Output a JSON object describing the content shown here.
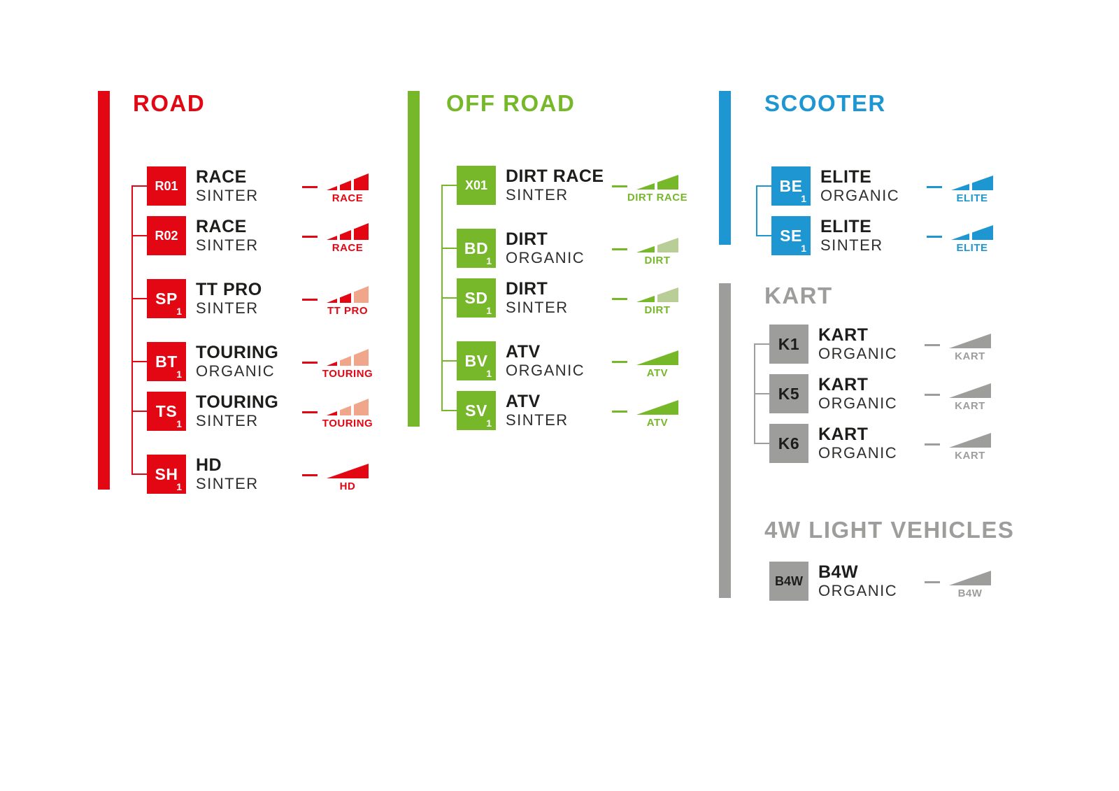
{
  "palette": {
    "red": "#e30613",
    "red_light": "#efa68a",
    "green": "#76b82a",
    "green_light": "#b9cd96",
    "blue": "#1e96d2",
    "gray": "#9d9d9c",
    "white": "#ffffff",
    "dark": "#1d1d1b"
  },
  "sections": [
    {
      "id": "road",
      "title": "ROAD",
      "color_key": "red",
      "badge_text_key": "white",
      "connector": true,
      "groups": [
        {
          "items": [
            {
              "code": "R01",
              "sub": "",
              "name": "RACE",
              "compound": "SINTER",
              "icon": {
                "type": "ramp3",
                "segments": [
                  "red",
                  "red",
                  "red"
                ],
                "label": "RACE"
              }
            },
            {
              "code": "R02",
              "sub": "",
              "name": "RACE",
              "compound": "SINTER",
              "icon": {
                "type": "ramp3",
                "segments": [
                  "red",
                  "red",
                  "red"
                ],
                "label": "RACE"
              }
            }
          ]
        },
        {
          "items": [
            {
              "code": "SP",
              "sub": "1",
              "name": "TT PRO",
              "compound": "SINTER",
              "icon": {
                "type": "ramp3",
                "segments": [
                  "red",
                  "red",
                  "red_light"
                ],
                "label": "TT PRO"
              }
            }
          ]
        },
        {
          "items": [
            {
              "code": "BT",
              "sub": "1",
              "name": "TOURING",
              "compound": "ORGANIC",
              "icon": {
                "type": "ramp3",
                "segments": [
                  "red",
                  "red_light",
                  "red_light"
                ],
                "label": "TOURING"
              }
            },
            {
              "code": "TS",
              "sub": "1",
              "name": "TOURING",
              "compound": "SINTER",
              "icon": {
                "type": "ramp3",
                "segments": [
                  "red",
                  "red_light",
                  "red_light"
                ],
                "label": "TOURING"
              }
            }
          ]
        },
        {
          "items": [
            {
              "code": "SH",
              "sub": "1",
              "name": "HD",
              "compound": "SINTER",
              "icon": {
                "type": "ramp1",
                "segments": [
                  "red"
                ],
                "label": "HD"
              }
            }
          ]
        }
      ]
    },
    {
      "id": "offroad",
      "title": "OFF ROAD",
      "color_key": "green",
      "badge_text_key": "white",
      "connector": true,
      "groups": [
        {
          "items": [
            {
              "code": "X01",
              "sub": "",
              "name": "DIRT RACE",
              "compound": "SINTER",
              "icon": {
                "type": "ramp2",
                "segments": [
                  "green",
                  "green"
                ],
                "label": "DIRT RACE"
              }
            }
          ]
        },
        {
          "items": [
            {
              "code": "BD",
              "sub": "1",
              "name": "DIRT",
              "compound": "ORGANIC",
              "icon": {
                "type": "ramp2",
                "segments": [
                  "green",
                  "green_light"
                ],
                "label": "DIRT"
              }
            },
            {
              "code": "SD",
              "sub": "1",
              "name": "DIRT",
              "compound": "SINTER",
              "icon": {
                "type": "ramp2",
                "segments": [
                  "green",
                  "green_light"
                ],
                "label": "DIRT"
              }
            }
          ]
        },
        {
          "items": [
            {
              "code": "BV",
              "sub": "1",
              "name": "ATV",
              "compound": "ORGANIC",
              "icon": {
                "type": "ramp1",
                "segments": [
                  "green"
                ],
                "label": "ATV"
              }
            },
            {
              "code": "SV",
              "sub": "1",
              "name": "ATV",
              "compound": "SINTER",
              "icon": {
                "type": "ramp1",
                "segments": [
                  "green"
                ],
                "label": "ATV"
              }
            }
          ]
        }
      ]
    },
    {
      "id": "scooter",
      "title": "SCOOTER",
      "color_key": "blue",
      "badge_text_key": "white",
      "connector": true,
      "groups": [
        {
          "items": [
            {
              "code": "BE",
              "sub": "1",
              "name": "ELITE",
              "compound": "ORGANIC",
              "icon": {
                "type": "ramp2",
                "segments": [
                  "blue",
                  "blue"
                ],
                "label": "ELITE"
              }
            },
            {
              "code": "SE",
              "sub": "1",
              "name": "ELITE",
              "compound": "SINTER",
              "icon": {
                "type": "ramp2",
                "segments": [
                  "blue",
                  "blue"
                ],
                "label": "ELITE"
              }
            }
          ]
        }
      ]
    },
    {
      "id": "kart",
      "title": "KART",
      "color_key": "gray",
      "badge_text_key": "dark",
      "connector": true,
      "groups": [
        {
          "items": [
            {
              "code": "K1",
              "sub": "",
              "name": "KART",
              "compound": "ORGANIC",
              "icon": {
                "type": "ramp1",
                "segments": [
                  "gray"
                ],
                "label": "KART"
              }
            },
            {
              "code": "K5",
              "sub": "",
              "name": "KART",
              "compound": "ORGANIC",
              "icon": {
                "type": "ramp1",
                "segments": [
                  "gray"
                ],
                "label": "KART"
              }
            },
            {
              "code": "K6",
              "sub": "",
              "name": "KART",
              "compound": "ORGANIC",
              "icon": {
                "type": "ramp1",
                "segments": [
                  "gray"
                ],
                "label": "KART"
              }
            }
          ]
        }
      ]
    },
    {
      "id": "fourw",
      "title": "4W LIGHT VEHICLES",
      "color_key": "gray",
      "badge_text_key": "dark",
      "connector": false,
      "groups": [
        {
          "items": [
            {
              "code": "B4W",
              "sub": "",
              "name": "B4W",
              "compound": "ORGANIC",
              "icon": {
                "type": "ramp1",
                "segments": [
                  "gray"
                ],
                "label": "B4W"
              }
            }
          ]
        }
      ]
    }
  ]
}
